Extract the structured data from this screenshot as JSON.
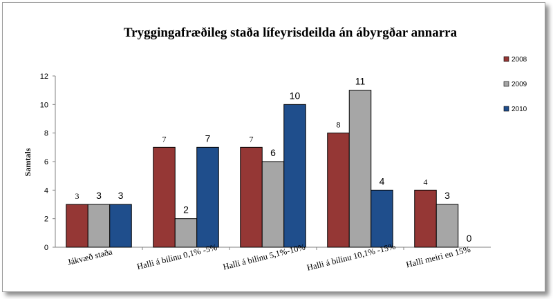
{
  "chart_data": {
    "type": "bar",
    "title": "Tryggingafræðileg staða lífeyrisdeilda án ábyrgðar annarra",
    "xlabel": "",
    "ylabel": "Samtals",
    "ylim": [
      0,
      12
    ],
    "yticks": [
      "0",
      "2",
      "4",
      "6",
      "8",
      "10",
      "12"
    ],
    "grid": false,
    "legend_position": "right",
    "categories": [
      "Jákvæð staða",
      "Halli á bilinu 0,1% -5%",
      "Halli á bilinu 5,1%-10%",
      "Halli á bilinu 10,1% -15%",
      "Halli meiri en 15%"
    ],
    "series": [
      {
        "name": "2008",
        "color": "#953735",
        "values": [
          3,
          7,
          7,
          8,
          4
        ],
        "labels": [
          "3",
          "7",
          "7",
          "8",
          "4"
        ]
      },
      {
        "name": "2009",
        "color": "#a6a6a6",
        "values": [
          3,
          2,
          6,
          11,
          3
        ],
        "labels": [
          "3",
          "2",
          "6",
          "11",
          "3"
        ]
      },
      {
        "name": "2010",
        "color": "#1f4e8c",
        "values": [
          3,
          7,
          10,
          4,
          0
        ],
        "labels": [
          "3",
          "7",
          "10",
          "4",
          "0"
        ]
      }
    ]
  }
}
